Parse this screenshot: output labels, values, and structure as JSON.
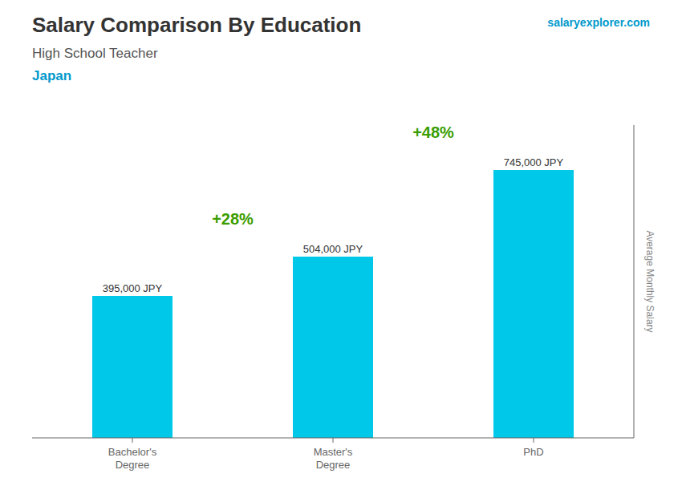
{
  "chart_data": {
    "type": "bar",
    "title": "Salary Comparison By Education",
    "subtitle": "High School Teacher",
    "country": "Japan",
    "source": "salaryexplorer.com",
    "ylabel": "Average Monthly Salary",
    "categories": [
      "Bachelor's\nDegree",
      "Master's\nDegree",
      "PhD"
    ],
    "values": [
      395000,
      504000,
      745000
    ],
    "value_labels": [
      "395,000 JPY",
      "504,000 JPY",
      "745,000 JPY"
    ],
    "data_labels": true,
    "annotations": [
      "+28%",
      "+48%"
    ],
    "color": "#00c8e8",
    "ylim": [
      0,
      870000
    ],
    "tick_labels": "x",
    "grid": false
  }
}
